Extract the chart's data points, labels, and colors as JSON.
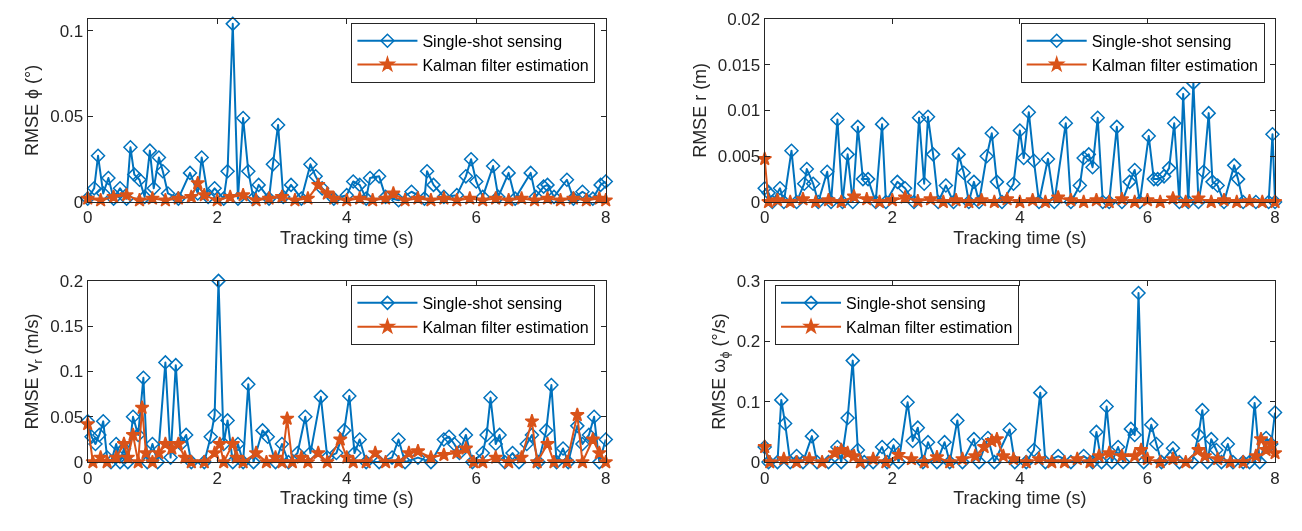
{
  "chart_data": [
    {
      "type": "line",
      "xlabel": "Tracking time (s)",
      "ylabel": "RMSE ϕ (°)",
      "xlim": [
        0,
        8
      ],
      "xticks": [
        0,
        2,
        4,
        6,
        8
      ],
      "ylim": [
        0,
        0.107
      ],
      "yticks": [
        0,
        0.05,
        0.1
      ],
      "legend": "top right",
      "series": [
        {
          "name": "Single-shot sensing",
          "color": "#0072bd",
          "marker": "diamond",
          "x": [
            0,
            0.1,
            0.16,
            0.24,
            0.32,
            0.4,
            0.5,
            0.6,
            0.66,
            0.72,
            0.8,
            0.88,
            0.96,
            1.02,
            1.1,
            1.16,
            1.24,
            1.4,
            1.58,
            1.7,
            1.76,
            1.86,
            1.96,
            2.1,
            2.16,
            2.24,
            2.32,
            2.4,
            2.48,
            2.56,
            2.64,
            2.8,
            2.86,
            2.94,
            3.02,
            3.14,
            3.3,
            3.44,
            3.52,
            3.62,
            3.8,
            4.0,
            4.1,
            4.2,
            4.3,
            4.36,
            4.5,
            4.6,
            4.8,
            5.0,
            5.2,
            5.24,
            5.34,
            5.5,
            5.7,
            5.84,
            5.92,
            6.0,
            6.1,
            6.26,
            6.34,
            6.5,
            6.6,
            6.84,
            6.92,
            7.04,
            7.1,
            7.2,
            7.4,
            7.5,
            7.64,
            7.8,
            7.92,
            8.0
          ],
          "values": [
            0.002,
            0.008,
            0.027,
            0.005,
            0.014,
            0.002,
            0.008,
            0.002,
            0.032,
            0.016,
            0.013,
            0.003,
            0.03,
            0.008,
            0.026,
            0.018,
            0.005,
            0.002,
            0.017,
            0.005,
            0.026,
            0.003,
            0.008,
            0.002,
            0.018,
            0.104,
            0.002,
            0.049,
            0.018,
            0.002,
            0.01,
            0.002,
            0.022,
            0.045,
            0.003,
            0.01,
            0.002,
            0.022,
            0.015,
            0.008,
            0.002,
            0.004,
            0.012,
            0.01,
            0.002,
            0.014,
            0.015,
            0.003,
            0.001,
            0.006,
            0.002,
            0.018,
            0.01,
            0.003,
            0.004,
            0.015,
            0.025,
            0.012,
            0.003,
            0.021,
            0.003,
            0.017,
            0.002,
            0.017,
            0.003,
            0.009,
            0.01,
            0.003,
            0.013,
            0.002,
            0.006,
            0.002,
            0.01,
            0.012
          ]
        },
        {
          "name": "Kalman filter estimation",
          "color": "#d95319",
          "marker": "star",
          "x": [
            0,
            0.2,
            0.4,
            0.6,
            0.8,
            1.0,
            1.2,
            1.4,
            1.6,
            1.7,
            1.8,
            2.0,
            2.2,
            2.4,
            2.6,
            2.8,
            3.0,
            3.2,
            3.4,
            3.56,
            3.7,
            3.8,
            4.0,
            4.2,
            4.4,
            4.6,
            4.72,
            4.9,
            5.1,
            5.3,
            5.5,
            5.7,
            5.9,
            6.1,
            6.3,
            6.5,
            6.7,
            6.9,
            7.1,
            7.3,
            7.5,
            7.7,
            7.9,
            8.0
          ],
          "values": [
            0.002,
            0.001,
            0.003,
            0.004,
            0.001,
            0.002,
            0.001,
            0.002,
            0.003,
            0.011,
            0.004,
            0.001,
            0.003,
            0.004,
            0.001,
            0.002,
            0.003,
            0.001,
            0.002,
            0.01,
            0.005,
            0.002,
            0.001,
            0.002,
            0.001,
            0.002,
            0.005,
            0.001,
            0.002,
            0.001,
            0.002,
            0.001,
            0.002,
            0.001,
            0.002,
            0.001,
            0.002,
            0.001,
            0.002,
            0.001,
            0.002,
            0.001,
            0.002,
            0.001
          ]
        }
      ]
    },
    {
      "type": "line",
      "xlabel": "Tracking time (s)",
      "ylabel": "RMSE r (m)",
      "xlim": [
        0,
        8
      ],
      "xticks": [
        0,
        2,
        4,
        6,
        8
      ],
      "ylim": [
        0,
        0.02
      ],
      "yticks": [
        0,
        0.005,
        0.01,
        0.015,
        0.02
      ],
      "legend": "top right",
      "series": [
        {
          "name": "Single-shot sensing",
          "color": "#0072bd",
          "marker": "diamond",
          "x": [
            0,
            0.06,
            0.12,
            0.24,
            0.3,
            0.42,
            0.5,
            0.62,
            0.66,
            0.76,
            0.84,
            0.98,
            1.04,
            1.14,
            1.22,
            1.3,
            1.38,
            1.46,
            1.54,
            1.62,
            1.74,
            1.84,
            1.9,
            2.08,
            2.2,
            2.34,
            2.42,
            2.5,
            2.56,
            2.64,
            2.72,
            2.84,
            2.96,
            3.04,
            3.12,
            3.2,
            3.28,
            3.36,
            3.48,
            3.56,
            3.64,
            3.72,
            3.9,
            4.0,
            4.06,
            4.14,
            4.22,
            4.3,
            4.44,
            4.54,
            4.72,
            4.8,
            4.94,
            5.0,
            5.08,
            5.14,
            5.22,
            5.3,
            5.4,
            5.52,
            5.6,
            5.72,
            5.8,
            5.88,
            6.02,
            6.1,
            6.16,
            6.26,
            6.34,
            6.42,
            6.5,
            6.56,
            6.64,
            6.72,
            6.8,
            6.88,
            6.96,
            7.02,
            7.1,
            7.2,
            7.36,
            7.42,
            7.5,
            7.7,
            7.9,
            7.96,
            8.0
          ],
          "values": [
            0.0015,
            0.001,
            0.0,
            0.0015,
            0.0,
            0.0056,
            0.0,
            0.002,
            0.0036,
            0.002,
            0.0,
            0.0033,
            0.0,
            0.009,
            0.0,
            0.0052,
            0.0,
            0.0082,
            0.0025,
            0.0025,
            0.0,
            0.0085,
            0.0,
            0.0022,
            0.0015,
            0.0,
            0.0092,
            0.002,
            0.0093,
            0.0052,
            0.0,
            0.0018,
            0.0,
            0.0052,
            0.0032,
            0.0,
            0.0022,
            0.0,
            0.005,
            0.0075,
            0.0022,
            0.0,
            0.002,
            0.0078,
            0.0048,
            0.0098,
            0.0045,
            0.0,
            0.0047,
            0.0,
            0.0086,
            0.0,
            0.0018,
            0.0048,
            0.0052,
            0.0038,
            0.0092,
            0.0,
            0.0,
            0.0082,
            0.0,
            0.0022,
            0.0035,
            0.0,
            0.0072,
            0.0025,
            0.0025,
            0.0028,
            0.0037,
            0.0086,
            0.0,
            0.0118,
            0.0,
            0.013,
            0.0,
            0.0033,
            0.0097,
            0.0022,
            0.0018,
            0.0,
            0.004,
            0.0025,
            0.0,
            0.0,
            0.0,
            0.0074,
            0.0
          ]
        },
        {
          "name": "Kalman filter estimation",
          "color": "#d95319",
          "marker": "star",
          "x": [
            0,
            0.06,
            0.2,
            0.4,
            0.6,
            0.8,
            1.0,
            1.2,
            1.4,
            1.6,
            1.8,
            2.0,
            2.2,
            2.4,
            2.6,
            2.8,
            3.0,
            3.2,
            3.4,
            3.6,
            3.8,
            4.0,
            4.2,
            4.4,
            4.6,
            4.8,
            5.0,
            5.2,
            5.4,
            5.6,
            5.8,
            6.0,
            6.2,
            6.4,
            6.6,
            6.8,
            7.0,
            7.2,
            7.4,
            7.6,
            7.8,
            8.0
          ],
          "values": [
            0.0047,
            0.0,
            0.0002,
            0.0,
            0.0003,
            0.0,
            0.0002,
            0.0,
            0.0006,
            0.0003,
            0.0,
            0.0002,
            0.0005,
            0.0001,
            0.0003,
            0.0,
            0.0002,
            0.0,
            0.0002,
            0.0,
            0.0003,
            0.0,
            0.0002,
            0.0,
            0.0005,
            0.0002,
            0.0,
            0.0002,
            0.0,
            0.0003,
            0.0,
            0.0002,
            0.0,
            0.0004,
            0.0,
            0.0004,
            0.0,
            0.0002,
            0.0,
            0.0001,
            0.0,
            0.0
          ]
        }
      ]
    },
    {
      "type": "line",
      "xlabel": "Tracking time (s)",
      "ylabel": "RMSE v$_{r}$ (m/s)",
      "xlim": [
        0,
        8
      ],
      "xticks": [
        0,
        2,
        4,
        6,
        8
      ],
      "ylim": [
        0,
        0.2
      ],
      "yticks": [
        0,
        0.05,
        0.1,
        0.15,
        0.2
      ],
      "legend": "top right",
      "series": [
        {
          "name": "Single-shot sensing",
          "color": "#0072bd",
          "marker": "diamond",
          "x": [
            0,
            0.06,
            0.12,
            0.18,
            0.24,
            0.3,
            0.36,
            0.44,
            0.5,
            0.56,
            0.62,
            0.7,
            0.78,
            0.86,
            0.92,
            1.0,
            1.08,
            1.2,
            1.28,
            1.36,
            1.44,
            1.52,
            1.6,
            1.8,
            1.9,
            1.96,
            2.02,
            2.1,
            2.16,
            2.24,
            2.32,
            2.4,
            2.48,
            2.56,
            2.7,
            2.78,
            2.9,
            3.0,
            3.1,
            3.24,
            3.36,
            3.44,
            3.6,
            3.7,
            3.84,
            3.96,
            4.04,
            4.12,
            4.2,
            4.3,
            4.5,
            4.7,
            4.8,
            4.9,
            5.1,
            5.3,
            5.5,
            5.58,
            5.66,
            5.74,
            5.84,
            5.94,
            6.1,
            6.16,
            6.22,
            6.3,
            6.36,
            6.44,
            6.56,
            6.66,
            6.78,
            6.86,
            6.96,
            7.08,
            7.16,
            7.24,
            7.34,
            7.42,
            7.56,
            7.64,
            7.74,
            7.82,
            7.9,
            8.0
          ],
          "values": [
            0.045,
            0.028,
            0.02,
            0.03,
            0.045,
            0.005,
            0.0,
            0.02,
            0.0,
            0.015,
            0.0,
            0.05,
            0.03,
            0.093,
            0.0,
            0.02,
            0.0,
            0.11,
            0.005,
            0.107,
            0.02,
            0.03,
            0.0,
            0.0,
            0.028,
            0.052,
            0.2,
            0.02,
            0.046,
            0.0,
            0.02,
            0.0,
            0.086,
            0.0,
            0.035,
            0.028,
            0.0,
            0.02,
            0.0,
            0.01,
            0.05,
            0.01,
            0.072,
            0.005,
            0.01,
            0.035,
            0.073,
            0.01,
            0.025,
            0.0,
            0.0,
            0.005,
            0.025,
            0.0,
            0.005,
            0.0,
            0.025,
            0.028,
            0.02,
            0.01,
            0.03,
            0.0,
            0.01,
            0.03,
            0.071,
            0.02,
            0.03,
            0.0,
            0.01,
            0.0,
            0.02,
            0.03,
            0.0,
            0.035,
            0.085,
            0.0,
            0.015,
            0.0,
            0.04,
            0.02,
            0.03,
            0.05,
            0.0,
            0.025
          ]
        },
        {
          "name": "Kalman filter estimation",
          "color": "#d95319",
          "marker": "star",
          "x": [
            0,
            0.08,
            0.2,
            0.3,
            0.44,
            0.56,
            0.62,
            0.7,
            0.78,
            0.84,
            0.9,
            1.0,
            1.1,
            1.2,
            1.3,
            1.4,
            1.5,
            1.6,
            1.8,
            1.96,
            2.04,
            2.1,
            2.24,
            2.3,
            2.4,
            2.6,
            2.76,
            2.9,
            3.0,
            3.08,
            3.16,
            3.3,
            3.4,
            3.56,
            3.7,
            3.9,
            4.0,
            4.1,
            4.3,
            4.44,
            4.6,
            4.8,
            4.96,
            5.1,
            5.3,
            5.5,
            5.7,
            5.84,
            5.96,
            6.1,
            6.3,
            6.5,
            6.7,
            6.86,
            6.94,
            7.1,
            7.2,
            7.4,
            7.56,
            7.64,
            7.8,
            7.9,
            8.0
          ],
          "values": [
            0.042,
            0.0,
            0.005,
            0.0,
            0.005,
            0.02,
            0.005,
            0.03,
            0.0,
            0.06,
            0.01,
            0.0,
            0.01,
            0.02,
            0.015,
            0.02,
            0.005,
            0.0,
            0.0,
            0.01,
            0.02,
            0.0,
            0.02,
            0.005,
            0.0,
            0.01,
            0.0,
            0.005,
            0.0,
            0.048,
            0.0,
            0.005,
            0.0,
            0.01,
            0.0,
            0.025,
            0.005,
            0.0,
            0.0,
            0.01,
            0.0,
            0.0,
            0.01,
            0.012,
            0.005,
            0.008,
            0.01,
            0.015,
            0.0,
            0.0,
            0.005,
            0.0,
            0.005,
            0.045,
            0.0,
            0.02,
            0.0,
            0.0,
            0.052,
            0.0,
            0.025,
            0.01,
            0.0
          ]
        }
      ]
    },
    {
      "type": "line",
      "xlabel": "Tracking time (s)",
      "ylabel": "RMSE ω$_{ϕ}$ (°/s)",
      "xlim": [
        0,
        8
      ],
      "xticks": [
        0,
        2,
        4,
        6,
        8
      ],
      "ylim": [
        0,
        0.3
      ],
      "yticks": [
        0,
        0.1,
        0.2,
        0.3
      ],
      "legend": "top left",
      "series": [
        {
          "name": "Single-shot sensing",
          "color": "#0072bd",
          "marker": "diamond",
          "x": [
            0,
            0.06,
            0.2,
            0.26,
            0.32,
            0.4,
            0.5,
            0.6,
            0.74,
            0.82,
            1.0,
            1.14,
            1.2,
            1.3,
            1.38,
            1.46,
            1.56,
            1.7,
            1.84,
            1.92,
            2.02,
            2.1,
            2.24,
            2.32,
            2.4,
            2.48,
            2.56,
            2.7,
            2.82,
            2.9,
            3.02,
            3.1,
            3.28,
            3.36,
            3.5,
            3.6,
            3.84,
            3.92,
            4.1,
            4.22,
            4.32,
            4.4,
            4.6,
            4.8,
            5.0,
            5.14,
            5.2,
            5.28,
            5.36,
            5.44,
            5.54,
            5.62,
            5.74,
            5.8,
            5.86,
            5.94,
            6.06,
            6.14,
            6.22,
            6.4,
            6.5,
            6.7,
            6.8,
            6.86,
            6.94,
            7.0,
            7.08,
            7.16,
            7.26,
            7.34,
            7.5,
            7.6,
            7.68,
            7.76,
            7.86,
            7.94,
            8.0
          ],
          "values": [
            0.025,
            0.0,
            0.0,
            0.103,
            0.064,
            0.0,
            0.01,
            0.0,
            0.043,
            0.0,
            0.0,
            0.025,
            0.0,
            0.073,
            0.168,
            0.02,
            0.0,
            0.0,
            0.025,
            0.0,
            0.028,
            0.0,
            0.099,
            0.035,
            0.057,
            0.0,
            0.033,
            0.0,
            0.033,
            0.0,
            0.069,
            0.0,
            0.038,
            0.0,
            0.04,
            0.0,
            0.054,
            0.0,
            0.0,
            0.02,
            0.115,
            0.0,
            0.01,
            0.0,
            0.01,
            0.0,
            0.05,
            0.0,
            0.092,
            0.0,
            0.025,
            0.0,
            0.055,
            0.045,
            0.28,
            0.0,
            0.062,
            0.03,
            0.0,
            0.023,
            0.0,
            0.0,
            0.045,
            0.086,
            0.0,
            0.038,
            0.02,
            0.0,
            0.03,
            0.0,
            0.0,
            0.0,
            0.098,
            0.0,
            0.04,
            0.03,
            0.082
          ]
        },
        {
          "name": "Kalman filter estimation",
          "color": "#d95319",
          "marker": "star",
          "x": [
            0,
            0.08,
            0.3,
            0.5,
            0.7,
            0.9,
            1.1,
            1.2,
            1.3,
            1.4,
            1.5,
            1.7,
            1.9,
            2.1,
            2.3,
            2.5,
            2.7,
            2.9,
            3.1,
            3.3,
            3.44,
            3.56,
            3.64,
            3.74,
            3.9,
            4.1,
            4.3,
            4.5,
            4.7,
            4.9,
            5.1,
            5.24,
            5.4,
            5.6,
            5.8,
            5.9,
            6.0,
            6.2,
            6.4,
            6.6,
            6.8,
            6.9,
            7.1,
            7.3,
            7.5,
            7.7,
            7.78,
            7.86,
            7.94,
            8.0
          ],
          "values": [
            0.025,
            0.0,
            0.005,
            0.0,
            0.005,
            0.0,
            0.015,
            0.02,
            0.015,
            0.01,
            0.0,
            0.005,
            0.0,
            0.012,
            0.005,
            0.0,
            0.008,
            0.0,
            0.005,
            0.01,
            0.025,
            0.035,
            0.038,
            0.01,
            0.005,
            0.0,
            0.005,
            0.0,
            0.0,
            0.005,
            0.0,
            0.01,
            0.015,
            0.01,
            0.01,
            0.02,
            0.005,
            0.0,
            0.005,
            0.0,
            0.02,
            0.01,
            0.005,
            0.0,
            0.0,
            0.01,
            0.038,
            0.02,
            0.03,
            0.015
          ]
        }
      ]
    }
  ]
}
